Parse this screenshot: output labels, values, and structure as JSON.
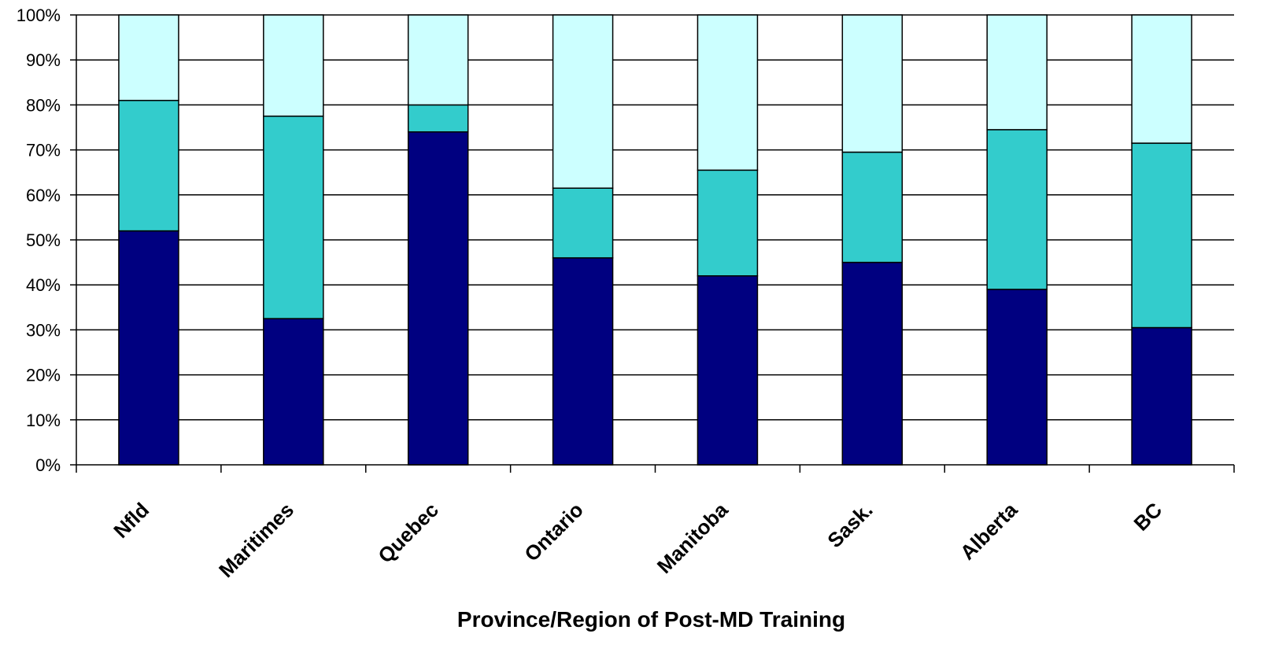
{
  "colors": {
    "series_1": "#000080",
    "series_2": "#33CCCC",
    "series_3": "#CCFFFF",
    "gridline": "#000000",
    "bar_border": "#000000"
  },
  "chart_data": {
    "type": "bar",
    "stacked": true,
    "percent_stacked": true,
    "categories": [
      "Nfld",
      "Maritimes",
      "Quebec",
      "Ontario",
      "Manitoba",
      "Sask.",
      "Alberta",
      "BC"
    ],
    "series": [
      {
        "values": [
          52,
          32.5,
          74,
          46,
          42,
          45,
          39,
          30.5
        ]
      },
      {
        "values": [
          29,
          45,
          6,
          15.5,
          23.5,
          24.5,
          35.5,
          41
        ]
      },
      {
        "values": [
          19,
          22.5,
          20,
          38.5,
          34.5,
          30.5,
          25.5,
          28.5
        ]
      }
    ],
    "y_ticks": [
      "0%",
      "10%",
      "20%",
      "30%",
      "40%",
      "50%",
      "60%",
      "70%",
      "80%",
      "90%",
      "100%"
    ],
    "ylim": [
      0,
      100
    ],
    "xlabel": "Province/Region of Post-MD Training",
    "ylabel": "",
    "grid": true,
    "legend": "none"
  }
}
